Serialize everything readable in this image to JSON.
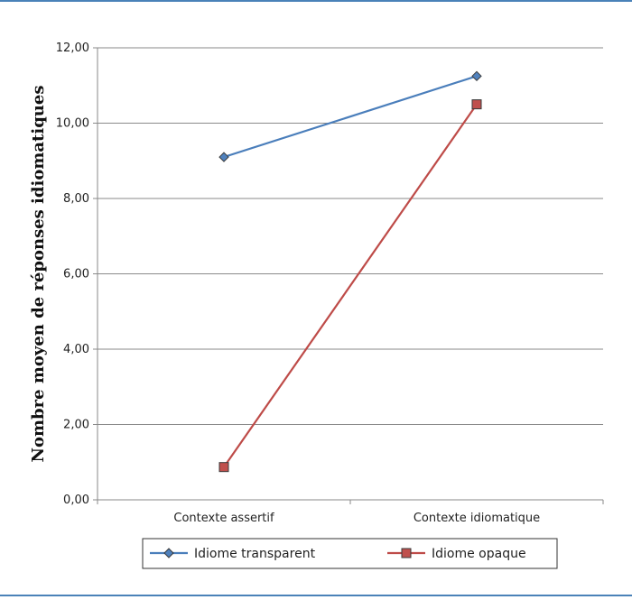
{
  "chart_data": {
    "type": "line",
    "title": "",
    "xlabel": "",
    "ylabel": "Nombre moyen de réponses idiomatiques",
    "categories": [
      "Contexte assertif",
      "Contexte idiomatique"
    ],
    "ylim": [
      0,
      12
    ],
    "yticks": [
      "0,00",
      "2,00",
      "4,00",
      "6,00",
      "8,00",
      "10,00",
      "12,00"
    ],
    "grid": true,
    "legend_position": "bottom",
    "series": [
      {
        "name": "Idiome transparent",
        "values": [
          9.1,
          11.25
        ],
        "color": "#4a7ebb",
        "marker": "diamond",
        "marker_fill": "#4f81bd"
      },
      {
        "name": "Idiome opaque",
        "values": [
          0.87,
          10.5
        ],
        "color": "#be4b48",
        "marker": "square",
        "marker_fill": "#c0504d"
      }
    ]
  }
}
